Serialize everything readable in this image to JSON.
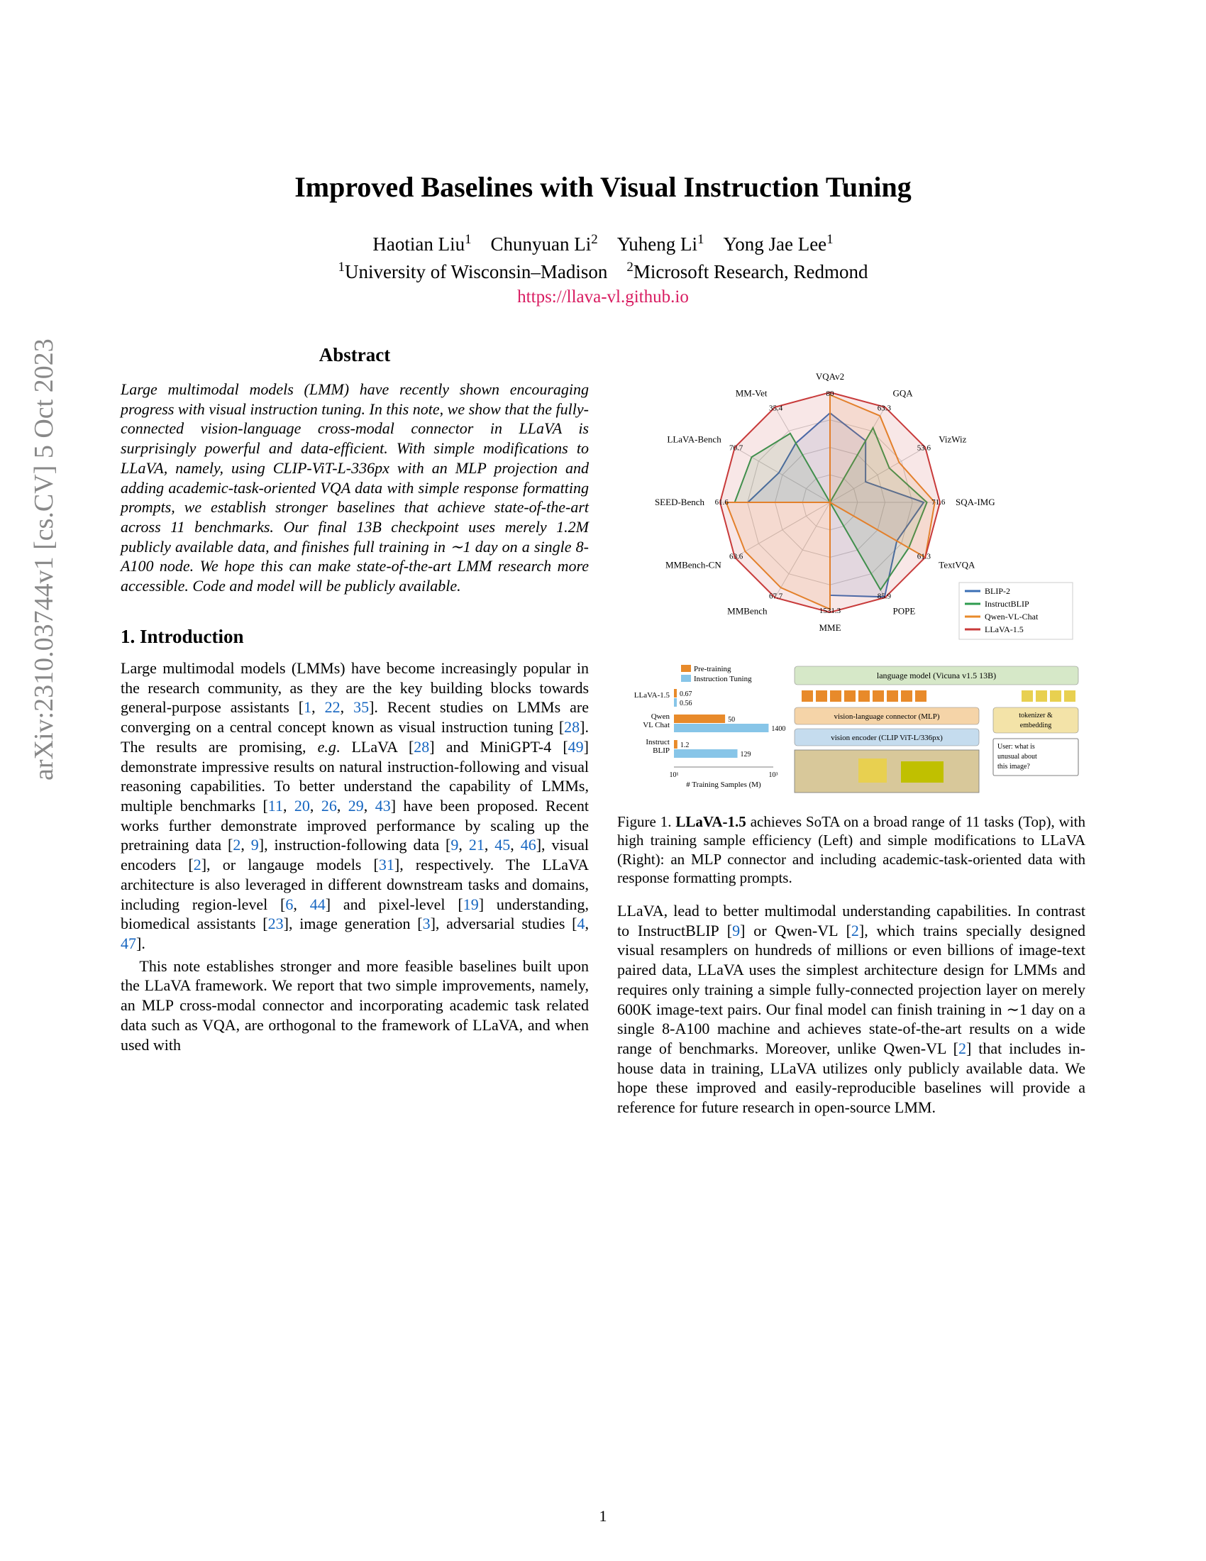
{
  "arxiv": "arXiv:2310.03744v1  [cs.CV]  5 Oct 2023",
  "title": "Improved Baselines with Visual Instruction Tuning",
  "authors_html": "Haotian Liu<sup>1</sup> Chunyuan Li<sup>2</sup> Yuheng Li<sup>1</sup> Yong Jae Lee<sup>1</sup>",
  "affil_html": "<sup>1</sup>University of Wisconsin–Madison <sup>2</sup>Microsoft Research, Redmond",
  "url": "https://llava-vl.github.io",
  "abstract_head": "Abstract",
  "abstract": "Large multimodal models (LMM) have recently shown encouraging progress with visual instruction tuning. In this note, we show that the fully-connected vision-language cross-modal connector in LLaVA is surprisingly powerful and data-efficient. With simple modifications to LLaVA, namely, using CLIP-ViT-L-336px with an MLP projection and adding academic-task-oriented VQA data with simple response formatting prompts, we establish stronger baselines that achieve state-of-the-art across 11 benchmarks. Our final 13B checkpoint uses merely 1.2M publicly available data, and finishes full training in ∼1 day on a single 8-A100 node. We hope this can make state-of-the-art LMM research more accessible. Code and model will be publicly available.",
  "section1": "1. Introduction",
  "col1_p1": "Large multimodal models (LMMs) have become increasingly popular in the research community, as they are the key building blocks towards general-purpose assistants [<span class='cite'>1</span>, <span class='cite'>22</span>, <span class='cite'>35</span>]. Recent studies on LMMs are converging on a central concept known as visual instruction tuning [<span class='cite'>28</span>]. The results are promising, <i>e.g</i>. LLaVA [<span class='cite'>28</span>] and MiniGPT-4 [<span class='cite'>49</span>] demonstrate impressive results on natural instruction-following and visual reasoning capabilities. To better understand the capability of LMMs, multiple benchmarks [<span class='cite'>11</span>, <span class='cite'>20</span>, <span class='cite'>26</span>, <span class='cite'>29</span>, <span class='cite'>43</span>] have been proposed. Recent works further demonstrate improved performance by scaling up the pretraining data [<span class='cite'>2</span>, <span class='cite'>9</span>], instruction-following data [<span class='cite'>9</span>, <span class='cite'>21</span>, <span class='cite'>45</span>, <span class='cite'>46</span>], visual encoders [<span class='cite'>2</span>], or langauge models [<span class='cite'>31</span>], respectively. The LLaVA architecture is also leveraged in different downstream tasks and domains, including region-level [<span class='cite'>6</span>, <span class='cite'>44</span>] and pixel-level [<span class='cite'>19</span>] understanding, biomedical assistants [<span class='cite'>23</span>], image generation [<span class='cite'>3</span>], adversarial studies [<span class='cite'>4</span>, <span class='cite'>47</span>].",
  "col1_p2": "This note establishes stronger and more feasible baselines built upon the LLaVA framework. We report that two simple improvements, namely, an MLP cross-modal connector and incorporating academic task related data such as VQA, are orthogonal to the framework of LLaVA, and when used with",
  "fig_caption": "Figure 1. <b>LLaVA-1.5</b> achieves SoTA on a broad range of 11 tasks (Top), with high training sample efficiency (Left) and simple modifications to LLaVA (Right): an MLP connector and including academic-task-oriented data with response formatting prompts.",
  "col2_p1": "LLaVA, lead to better multimodal understanding capabilities. In contrast to InstructBLIP [<span class='cite'>9</span>] or Qwen-VL [<span class='cite'>2</span>], which trains specially designed visual resamplers on hundreds of millions or even billions of image-text paired data, LLaVA uses the simplest architecture design for LMMs and requires only training a simple fully-connected projection layer on merely 600K image-text pairs. Our final model can finish training in ∼1 day on a single 8-A100 machine and achieves state-of-the-art results on a wide range of benchmarks. Moreover, unlike Qwen-VL [<span class='cite'>2</span>] that includes in-house data in training, LLaVA utilizes only publicly available data. We hope these improved and easily-reproducible baselines will provide a reference for future research in open-source LMM.",
  "radar": {
    "type": "radar",
    "axes": [
      "VQAv2",
      "GQA",
      "VizWiz",
      "SQA-IMG",
      "TextVQA",
      "POPE",
      "MME",
      "MMBench",
      "MMBench-CN",
      "SEED-Bench",
      "LLaVA-Bench",
      "MM-Vet"
    ],
    "series": [
      {
        "name": "BLIP-2",
        "color": "#3b6fb5",
        "values": [
          65,
          41,
          20,
          61,
          43,
          85.3,
          1293.8,
          0,
          0,
          46,
          38,
          22
        ]
      },
      {
        "name": "InstructBLIP",
        "color": "#2e9b4f",
        "values": [
          0,
          49.5,
          33.4,
          63.1,
          50.7,
          78.9,
          0,
          0,
          0,
          53.4,
          58.2,
          25.6
        ]
      },
      {
        "name": "Qwen-VL-Chat",
        "color": "#e88a2a",
        "values": [
          78.2,
          57.5,
          38.9,
          68.2,
          61.5,
          0,
          1487.5,
          60.6,
          56.7,
          58.2,
          0,
          0
        ]
      },
      {
        "name": "LLaVA-1.5",
        "color": "#c83a3a",
        "values": [
          80.0,
          63.3,
          53.6,
          71.6,
          61.3,
          85.9,
          1531.3,
          67.7,
          63.6,
          61.6,
          70.7,
          35.4
        ]
      }
    ],
    "background": "#ffffff",
    "grid_color": "#cccccc",
    "label_fontsize": 13,
    "fill_opacity": 0.12
  },
  "arch": {
    "legend_pre": "Pre-training",
    "legend_it": "Instruction Tuning",
    "legend_pre_color": "#e88a2a",
    "legend_it_color": "#87c5e8",
    "bars": [
      {
        "label": "LLaVA-1.5",
        "pre": 0.67,
        "it": 0.56
      },
      {
        "label": "Qwen-VL-Chat",
        "pre": 50,
        "it": 1400
      },
      {
        "label": "Instruct BLIP",
        "pre": 1.2,
        "it": 129
      }
    ],
    "xlabel": "# Training Samples (M)",
    "xticks": [
      "10¹",
      "10³"
    ],
    "lm_box": "language model (Vicuna v1.5 13B)",
    "lm_color": "#d6e8c8",
    "conn_box": "vision-language connector (MLP)",
    "conn_color": "#f5d4a8",
    "enc_box": "vision encoder (CLIP ViT-L/336px)",
    "enc_color": "#c5dcee",
    "tok_box": "tokenizer & embedding",
    "tok_color": "#f3e3a8",
    "user_box": "User: what is unusual about this image?",
    "token_color": "#e88a2a",
    "token_color2": "#e8d050"
  },
  "pagenum": "1"
}
